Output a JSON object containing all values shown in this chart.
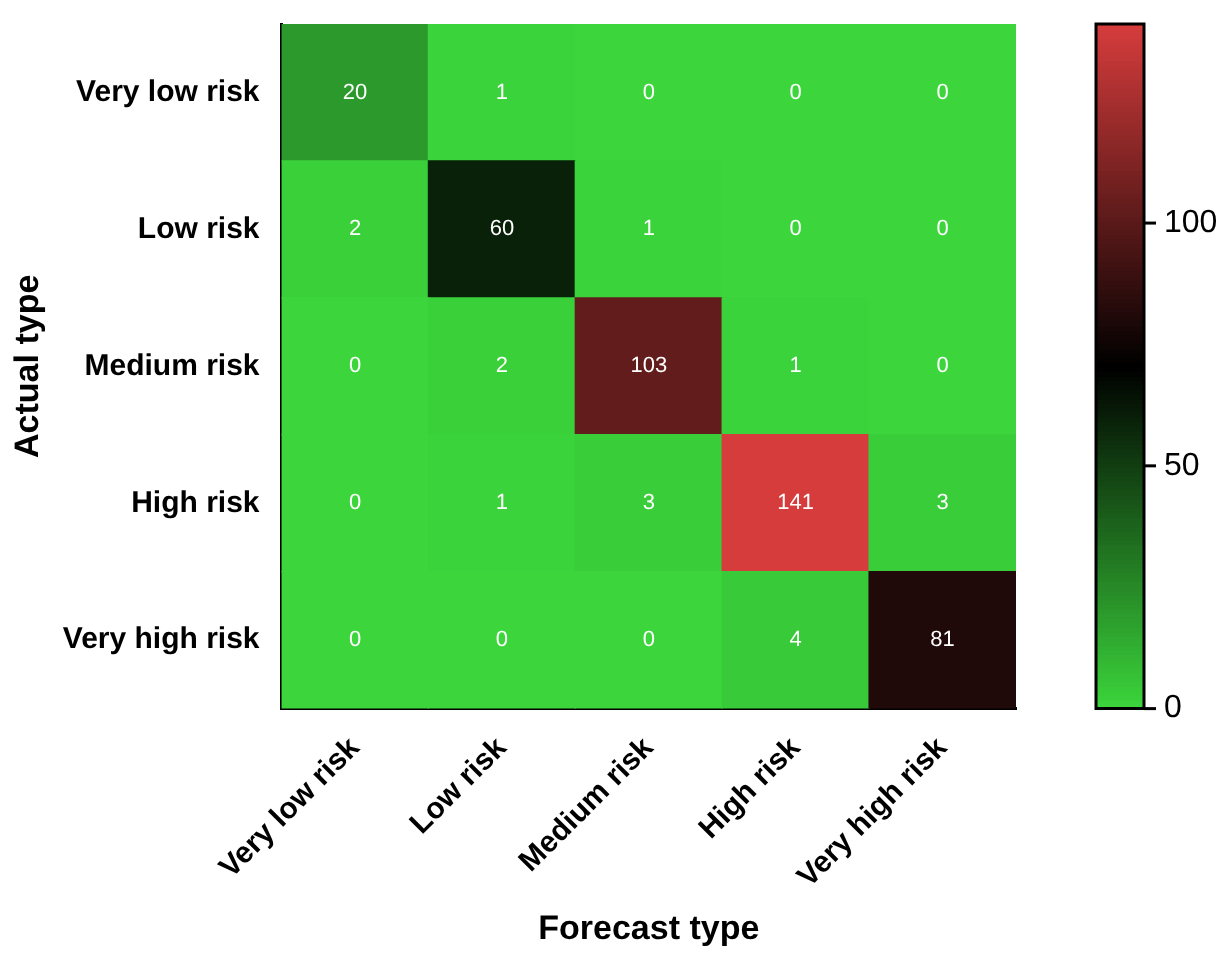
{
  "chart_data": {
    "type": "heatmap",
    "xlabel": "Forecast type",
    "ylabel": "Actual type",
    "categories": [
      "Very low risk",
      "Low risk",
      "Medium risk",
      "High risk",
      "Very high risk"
    ],
    "y_categories": [
      "Very low risk",
      "Low risk",
      "Medium risk",
      "High risk",
      "Very high risk"
    ],
    "cells": [
      [
        20,
        1,
        0,
        0,
        0
      ],
      [
        2,
        60,
        1,
        0,
        0
      ],
      [
        0,
        2,
        103,
        1,
        0
      ],
      [
        0,
        1,
        3,
        141,
        3
      ],
      [
        0,
        0,
        0,
        4,
        81
      ]
    ],
    "clim": [
      0,
      141
    ],
    "cticks": [
      0,
      50,
      100
    ],
    "data_labels": true
  }
}
